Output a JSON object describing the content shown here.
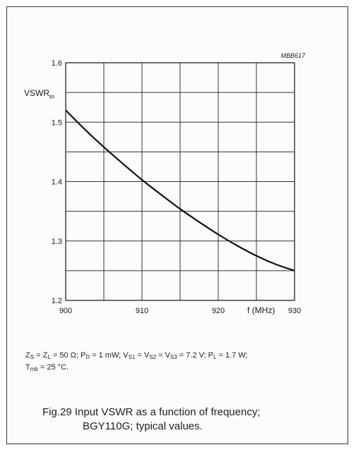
{
  "figure_code": "MBB617",
  "conditions": {
    "part1": "Z",
    "sub_s": "S",
    "part2": " = Z",
    "sub_l": "L",
    "part3": " = 50 Ω; P",
    "sub_d": "D",
    "part4": " = 1 mW; V",
    "sub_s1": "S1",
    "part5": " = V",
    "sub_s2": "S2",
    "part6": " = V",
    "sub_s3": "S3",
    "part7": " = 7.2 V; P",
    "sub_l2": "L",
    "part8": " = 1.7 W;",
    "line2_a": "T",
    "sub_mb": "mb",
    "line2_b": " = 25 °C."
  },
  "caption": {
    "line1": "Fig.29  Input VSWR as a function of frequency;",
    "line2": "BGY110G; typical values."
  },
  "chart_data": {
    "type": "line",
    "xlabel": "f (MHz)",
    "ylabel_main": "VSWR",
    "ylabel_sub": "in",
    "xlim": [
      900,
      930
    ],
    "ylim": [
      1.2,
      1.6
    ],
    "x_ticks": [
      900,
      910,
      920,
      930
    ],
    "x_tick_labels": [
      "900",
      "910",
      "920",
      "930"
    ],
    "y_ticks": [
      1.2,
      1.3,
      1.4,
      1.5,
      1.6
    ],
    "y_tick_labels": [
      "1.2",
      "1.3",
      "1.4",
      "1.5",
      "1.6"
    ],
    "x_grid_step": 5,
    "y_grid_step": 0.05,
    "grid": true,
    "line_color": "#111111",
    "grid_color": "#333333",
    "series": [
      {
        "x": [
          900,
          902.5,
          905,
          907.5,
          910,
          912.5,
          915,
          917.5,
          920,
          922.5,
          925,
          927.5,
          930
        ],
        "values": [
          1.52,
          1.488,
          1.458,
          1.43,
          1.403,
          1.378,
          1.354,
          1.332,
          1.311,
          1.292,
          1.275,
          1.261,
          1.25
        ]
      }
    ]
  }
}
